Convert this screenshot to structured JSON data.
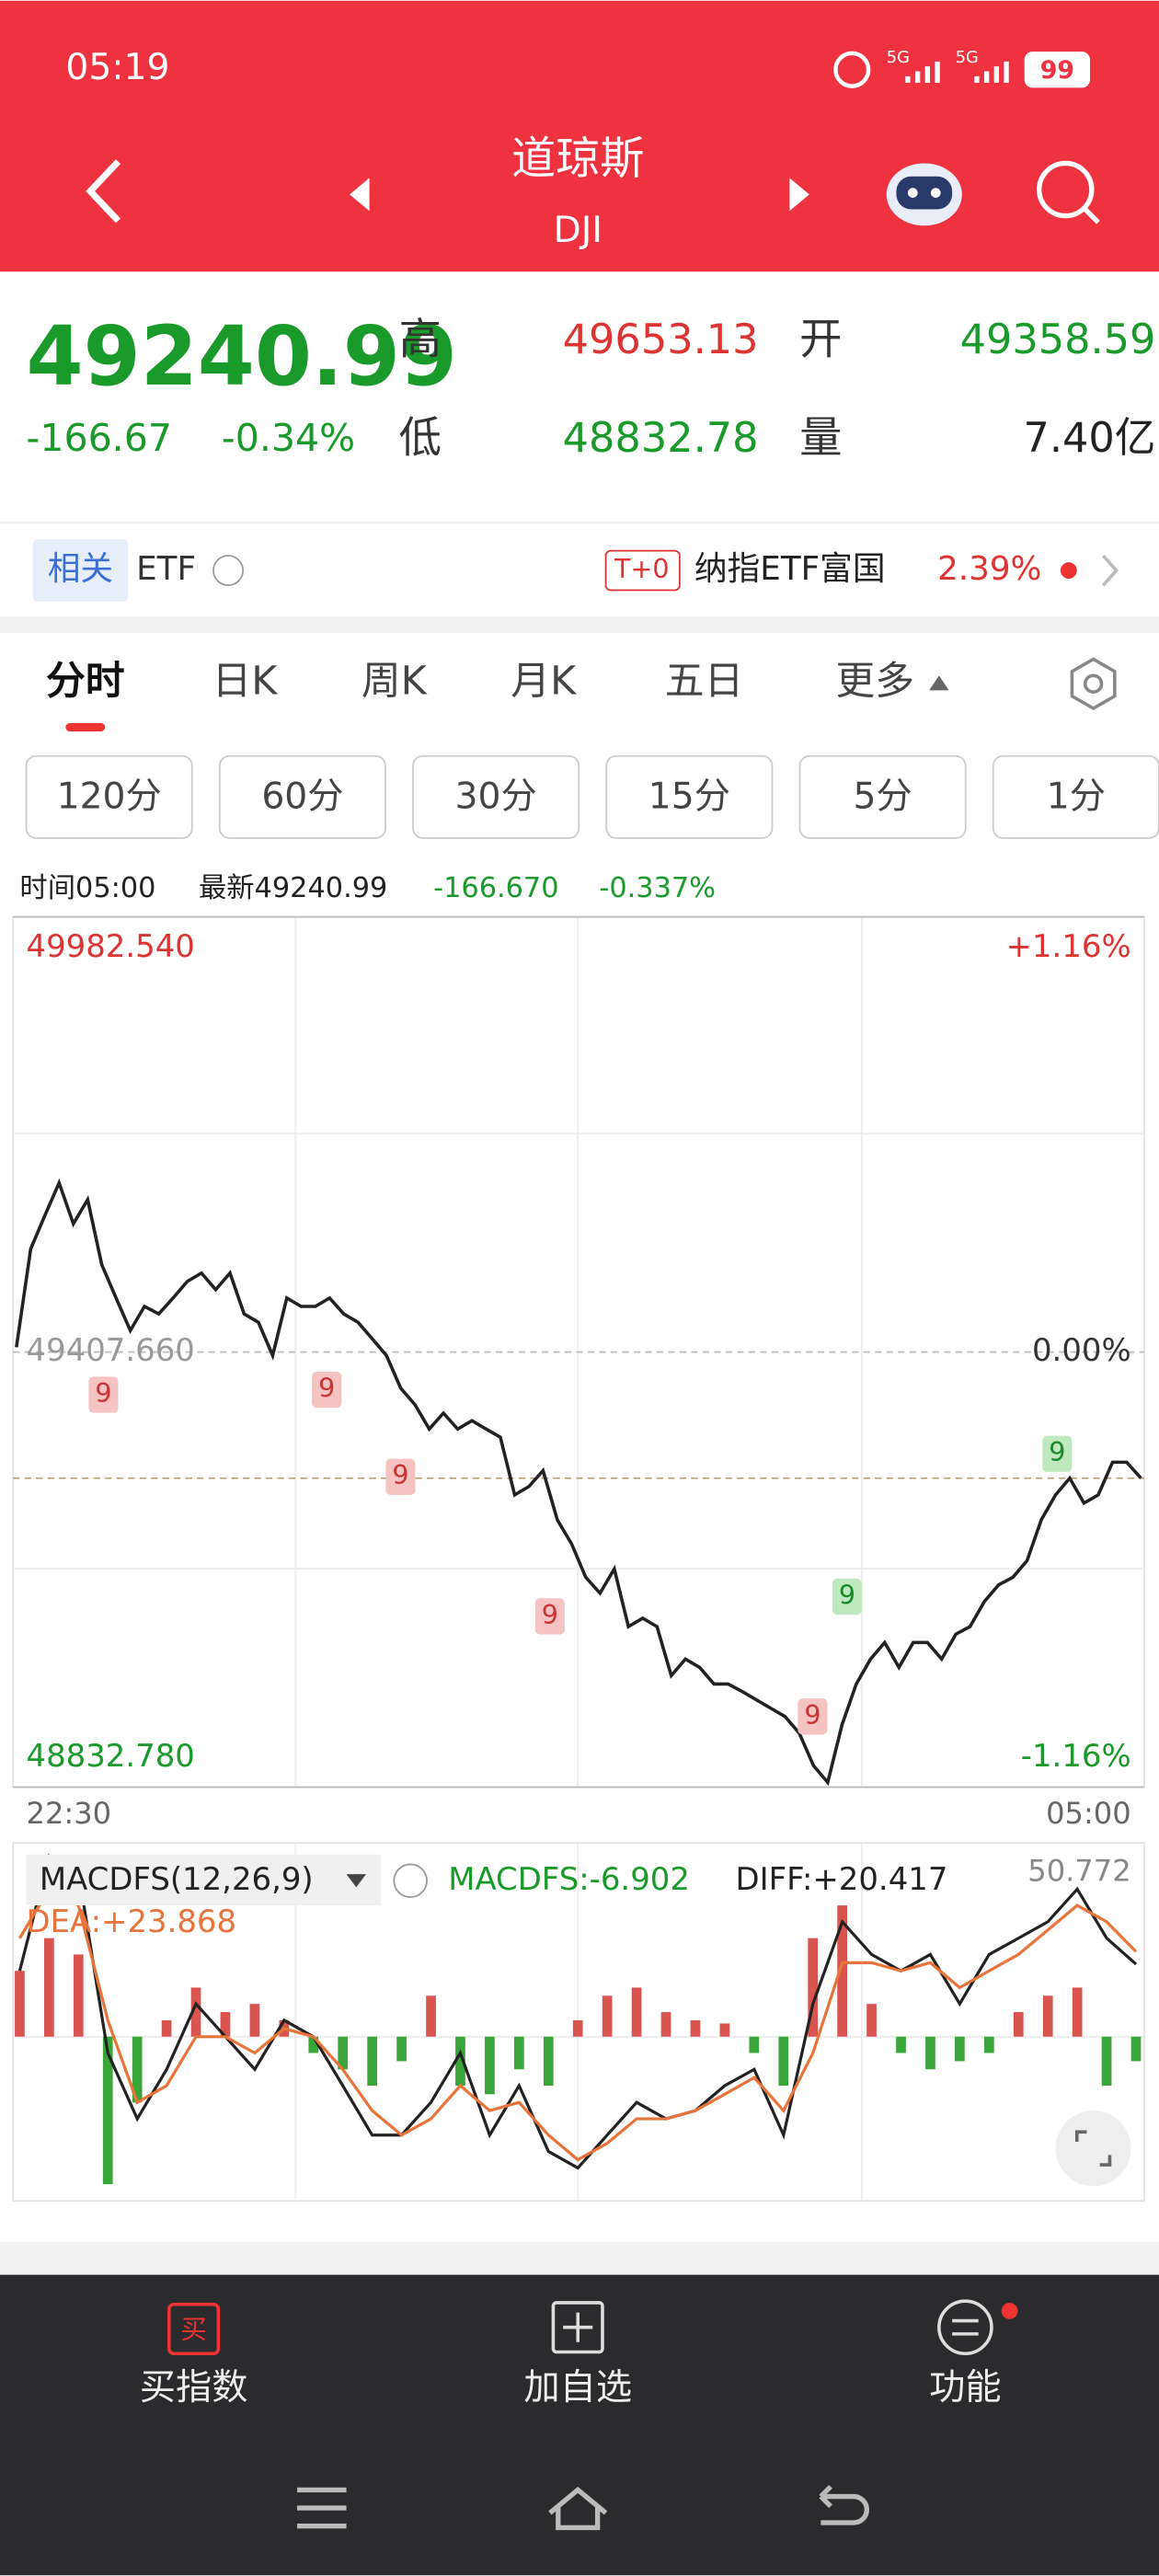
{
  "status_bar": {
    "time": "05:19",
    "network_1": "5G",
    "network_2": "5G",
    "battery": "99"
  },
  "header": {
    "title": "道琼斯",
    "subtitle": "DJI"
  },
  "quote": {
    "price": "49240.99",
    "change": "-166.67",
    "change_pct": "-0.34%",
    "high_label": "高",
    "high": "49653.13",
    "open_label": "开",
    "open": "49358.59",
    "low_label": "低",
    "low": "48832.78",
    "volume_label": "量",
    "volume": "7.40亿"
  },
  "etf": {
    "tag": "相关",
    "label": "ETF",
    "badge": "T+0",
    "fund": "纳指ETF富国",
    "fund_change": "2.39%"
  },
  "tabs": [
    "分时",
    "日K",
    "周K",
    "月K",
    "五日",
    "更多"
  ],
  "periods": [
    "120分",
    "60分",
    "30分",
    "15分",
    "5分",
    "1分"
  ],
  "info": {
    "time": "时间05:00",
    "latest": "最新49240.99",
    "change": "-166.670",
    "change_pct": "-0.337%"
  },
  "chart_data": [
    {
      "type": "line",
      "color": "#222222",
      "x_labels": [
        "22:30",
        "05:00"
      ],
      "ylim": [
        48832.78,
        49982.54
      ],
      "yticks": [
        {
          "value": 49982.54,
          "label": "49982.540"
        },
        {
          "value": 49407.66,
          "label": "49407.660"
        },
        {
          "value": 48832.78,
          "label": "48832.780"
        }
      ],
      "y2lim": [
        -1.16,
        1.16
      ],
      "y2ticks": [
        {
          "value": 1.16,
          "label": "+1.16%"
        },
        {
          "value": 0,
          "label": "0.00%"
        },
        {
          "value": -1.16,
          "label": "-1.16%"
        }
      ],
      "annotations": [
        "9",
        "9",
        "9",
        "9",
        "9",
        "9",
        "9"
      ],
      "values": [
        49414,
        49544,
        49588,
        49631,
        49577,
        49609,
        49523,
        49479,
        49436,
        49468,
        49458,
        49479,
        49501,
        49512,
        49490,
        49512,
        49458,
        49447,
        49403,
        49479,
        49468,
        49468,
        49479,
        49458,
        49447,
        49425,
        49403,
        49360,
        49338,
        49306,
        49327,
        49306,
        49317,
        49306,
        49295,
        49219,
        49230,
        49251,
        49186,
        49154,
        49110,
        49089,
        49121,
        49045,
        49056,
        49045,
        48980,
        49002,
        48991,
        48969,
        48969,
        48959,
        48948,
        48937,
        48926,
        48904,
        48861,
        48839,
        48915,
        48969,
        49002,
        49024,
        48991,
        49024,
        49024,
        49002,
        49035,
        49045,
        49078,
        49100,
        49110,
        49132,
        49186,
        49219,
        49241,
        49208,
        49219,
        49262,
        49262,
        49240.99
      ]
    },
    {
      "type": "macd",
      "title": "MACDFS(12,26,9)",
      "legend": {
        "macdfs": "MACDFS:-6.902",
        "diff": "DIFF:+20.417",
        "dea": "DEA:+23.868"
      },
      "ylim": [
        -46.2,
        50.772
      ],
      "yticks": [
        50.772
      ],
      "up_color": "#d9534f",
      "down_color": "#3aa63a",
      "histogram": [
        18.5,
        27.7,
        23.1,
        -41.5,
        -18.5,
        4.6,
        13.8,
        6.9,
        9.2,
        4.6,
        -4.6,
        -9.2,
        -13.8,
        -6.9,
        11.5,
        -13.8,
        -16.2,
        -9.2,
        -13.8,
        4.6,
        11.5,
        13.8,
        6.9,
        4.6,
        3.7,
        -4.6,
        -13.8,
        27.7,
        36.9,
        9.2,
        -4.6,
        -9.2,
        -6.9,
        -4.6,
        6.9,
        11.5,
        13.8,
        -13.8,
        -6.9
      ],
      "series": [
        {
          "color": "#222222",
          "values": [
            18.5,
            50.8,
            46.2,
            -4.6,
            -23.1,
            -9.2,
            9.2,
            0,
            -9.2,
            4.6,
            0,
            -13.8,
            -27.7,
            -27.7,
            -18.5,
            -4.6,
            -27.7,
            -13.8,
            -32.3,
            -36.9,
            -27.7,
            -18.5,
            -23.1,
            -20.8,
            -13.8,
            -9.2,
            -27.7,
            9.2,
            32.3,
            23.1,
            18.5,
            23.1,
            9.2,
            23.1,
            27.7,
            32.3,
            41.5,
            27.7,
            20.4
          ]
        },
        {
          "color": "#e8743b",
          "values": [
            27.7,
            41.5,
            36.9,
            4.6,
            -18.5,
            -13.8,
            0,
            0,
            -4.6,
            2.3,
            0,
            -9.2,
            -20.8,
            -27.7,
            -23.1,
            -13.8,
            -20.8,
            -18.5,
            -27.7,
            -34.6,
            -30,
            -23.1,
            -23.1,
            -20.8,
            -16.2,
            -11.5,
            -20.8,
            -4.6,
            20.8,
            20.8,
            18.5,
            20.8,
            13.8,
            18.5,
            23.1,
            30,
            36.9,
            32.3,
            23.9
          ]
        }
      ]
    }
  ],
  "nav": {
    "buy_icon": "买",
    "items": [
      "买指数",
      "加自选",
      "功能"
    ]
  }
}
